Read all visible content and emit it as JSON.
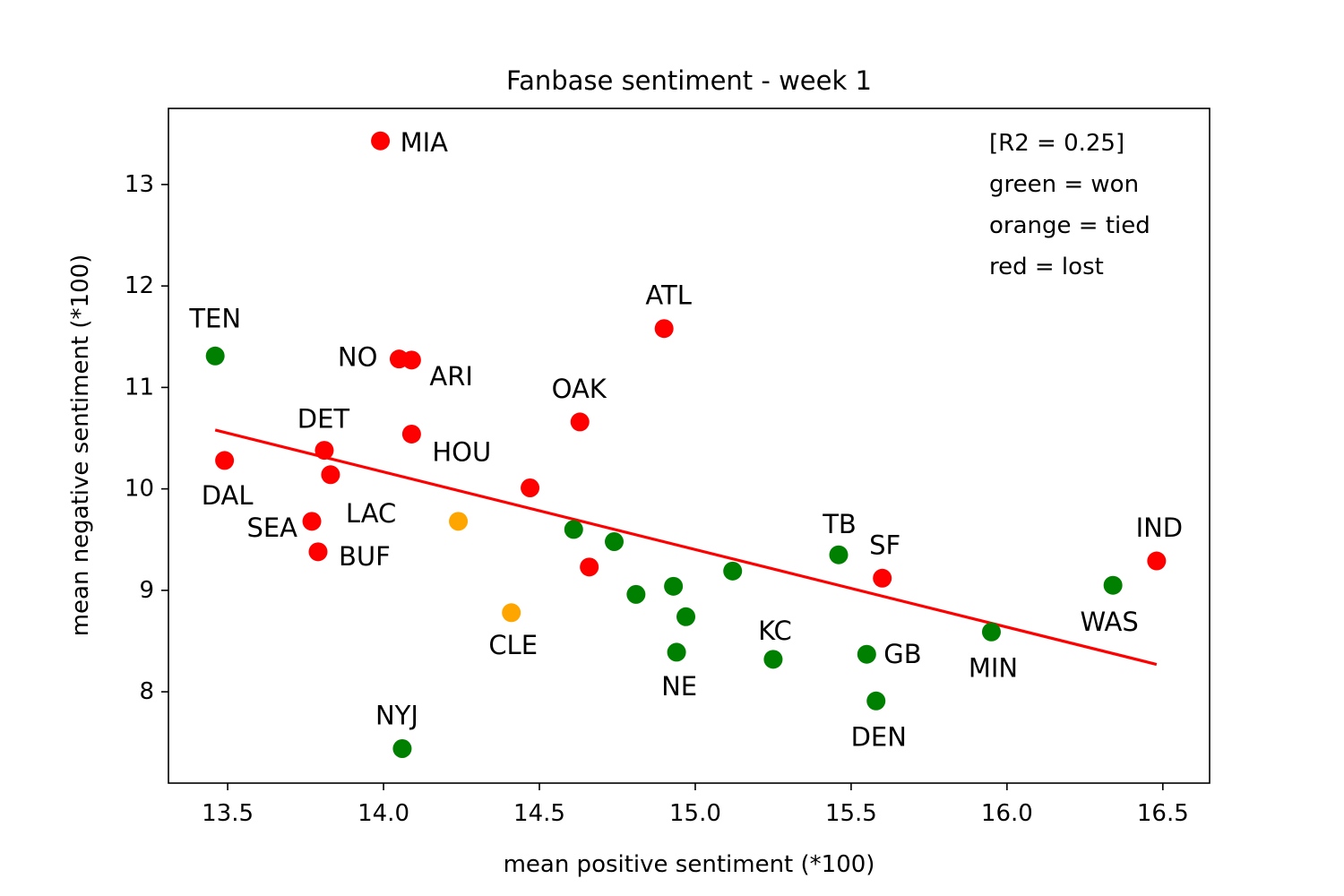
{
  "chart_data": {
    "type": "scatter",
    "title": "Fanbase sentiment - week 1",
    "xlabel": "mean positive sentiment (*100)",
    "ylabel": "mean negative sentiment (*100)",
    "xlim": [
      13.31,
      16.65
    ],
    "ylim": [
      7.1,
      13.75
    ],
    "xticks": [
      "13.5",
      "14.0",
      "14.5",
      "15.0",
      "15.5",
      "16.0",
      "16.5"
    ],
    "yticks": [
      "8",
      "9",
      "10",
      "11",
      "12",
      "13"
    ],
    "grid": false,
    "annotation_lines": [
      "[R2 = 0.25]",
      "green = won",
      "orange = tied",
      "red = lost"
    ],
    "colors": {
      "won": "#008000",
      "tied": "#ffa500",
      "lost": "#ff0000",
      "fit": "#ff0000"
    },
    "fit_line": {
      "x": [
        13.46,
        16.48
      ],
      "y": [
        10.58,
        8.27
      ]
    },
    "points": [
      {
        "label": "MIA",
        "x": 13.99,
        "y": 13.43,
        "result": "lost"
      },
      {
        "label": "ATL",
        "x": 14.9,
        "y": 11.58,
        "result": "lost"
      },
      {
        "label": "TEN",
        "x": 13.46,
        "y": 11.31,
        "result": "won"
      },
      {
        "label": "NO",
        "x": 14.05,
        "y": 11.28,
        "result": "lost"
      },
      {
        "label": "ARI",
        "x": 14.09,
        "y": 11.27,
        "result": "lost"
      },
      {
        "label": "OAK",
        "x": 14.63,
        "y": 10.66,
        "result": "lost"
      },
      {
        "label": "HOU",
        "x": 14.09,
        "y": 10.54,
        "result": "lost"
      },
      {
        "label": "DET",
        "x": 13.81,
        "y": 10.38,
        "result": "lost"
      },
      {
        "label": "DAL",
        "x": 13.49,
        "y": 10.28,
        "result": "lost"
      },
      {
        "label": "LAC",
        "x": 13.83,
        "y": 10.14,
        "result": "lost"
      },
      {
        "label": "",
        "x": 14.47,
        "y": 10.01,
        "result": "lost"
      },
      {
        "label": "SEA",
        "x": 13.77,
        "y": 9.68,
        "result": "lost"
      },
      {
        "label": "",
        "x": 14.24,
        "y": 9.68,
        "result": "tied"
      },
      {
        "label": "",
        "x": 14.61,
        "y": 9.6,
        "result": "won"
      },
      {
        "label": "",
        "x": 14.74,
        "y": 9.48,
        "result": "won"
      },
      {
        "label": "BUF",
        "x": 13.79,
        "y": 9.38,
        "result": "lost"
      },
      {
        "label": "TB",
        "x": 15.46,
        "y": 9.35,
        "result": "won"
      },
      {
        "label": "IND",
        "x": 16.48,
        "y": 9.29,
        "result": "lost"
      },
      {
        "label": "",
        "x": 14.66,
        "y": 9.23,
        "result": "lost"
      },
      {
        "label": "",
        "x": 15.12,
        "y": 9.19,
        "result": "won"
      },
      {
        "label": "SF",
        "x": 15.6,
        "y": 9.12,
        "result": "lost"
      },
      {
        "label": "WAS",
        "x": 16.34,
        "y": 9.05,
        "result": "won"
      },
      {
        "label": "",
        "x": 14.93,
        "y": 9.04,
        "result": "won"
      },
      {
        "label": "",
        "x": 14.81,
        "y": 8.96,
        "result": "won"
      },
      {
        "label": "CLE",
        "x": 14.41,
        "y": 8.78,
        "result": "tied"
      },
      {
        "label": "",
        "x": 14.97,
        "y": 8.74,
        "result": "won"
      },
      {
        "label": "MIN",
        "x": 15.95,
        "y": 8.59,
        "result": "won"
      },
      {
        "label": "NE",
        "x": 14.94,
        "y": 8.39,
        "result": "won"
      },
      {
        "label": "GB",
        "x": 15.55,
        "y": 8.37,
        "result": "won"
      },
      {
        "label": "KC",
        "x": 15.25,
        "y": 8.32,
        "result": "won"
      },
      {
        "label": "DEN",
        "x": 15.58,
        "y": 7.91,
        "result": "won"
      },
      {
        "label": "NYJ",
        "x": 14.06,
        "y": 7.44,
        "result": "won"
      }
    ]
  }
}
